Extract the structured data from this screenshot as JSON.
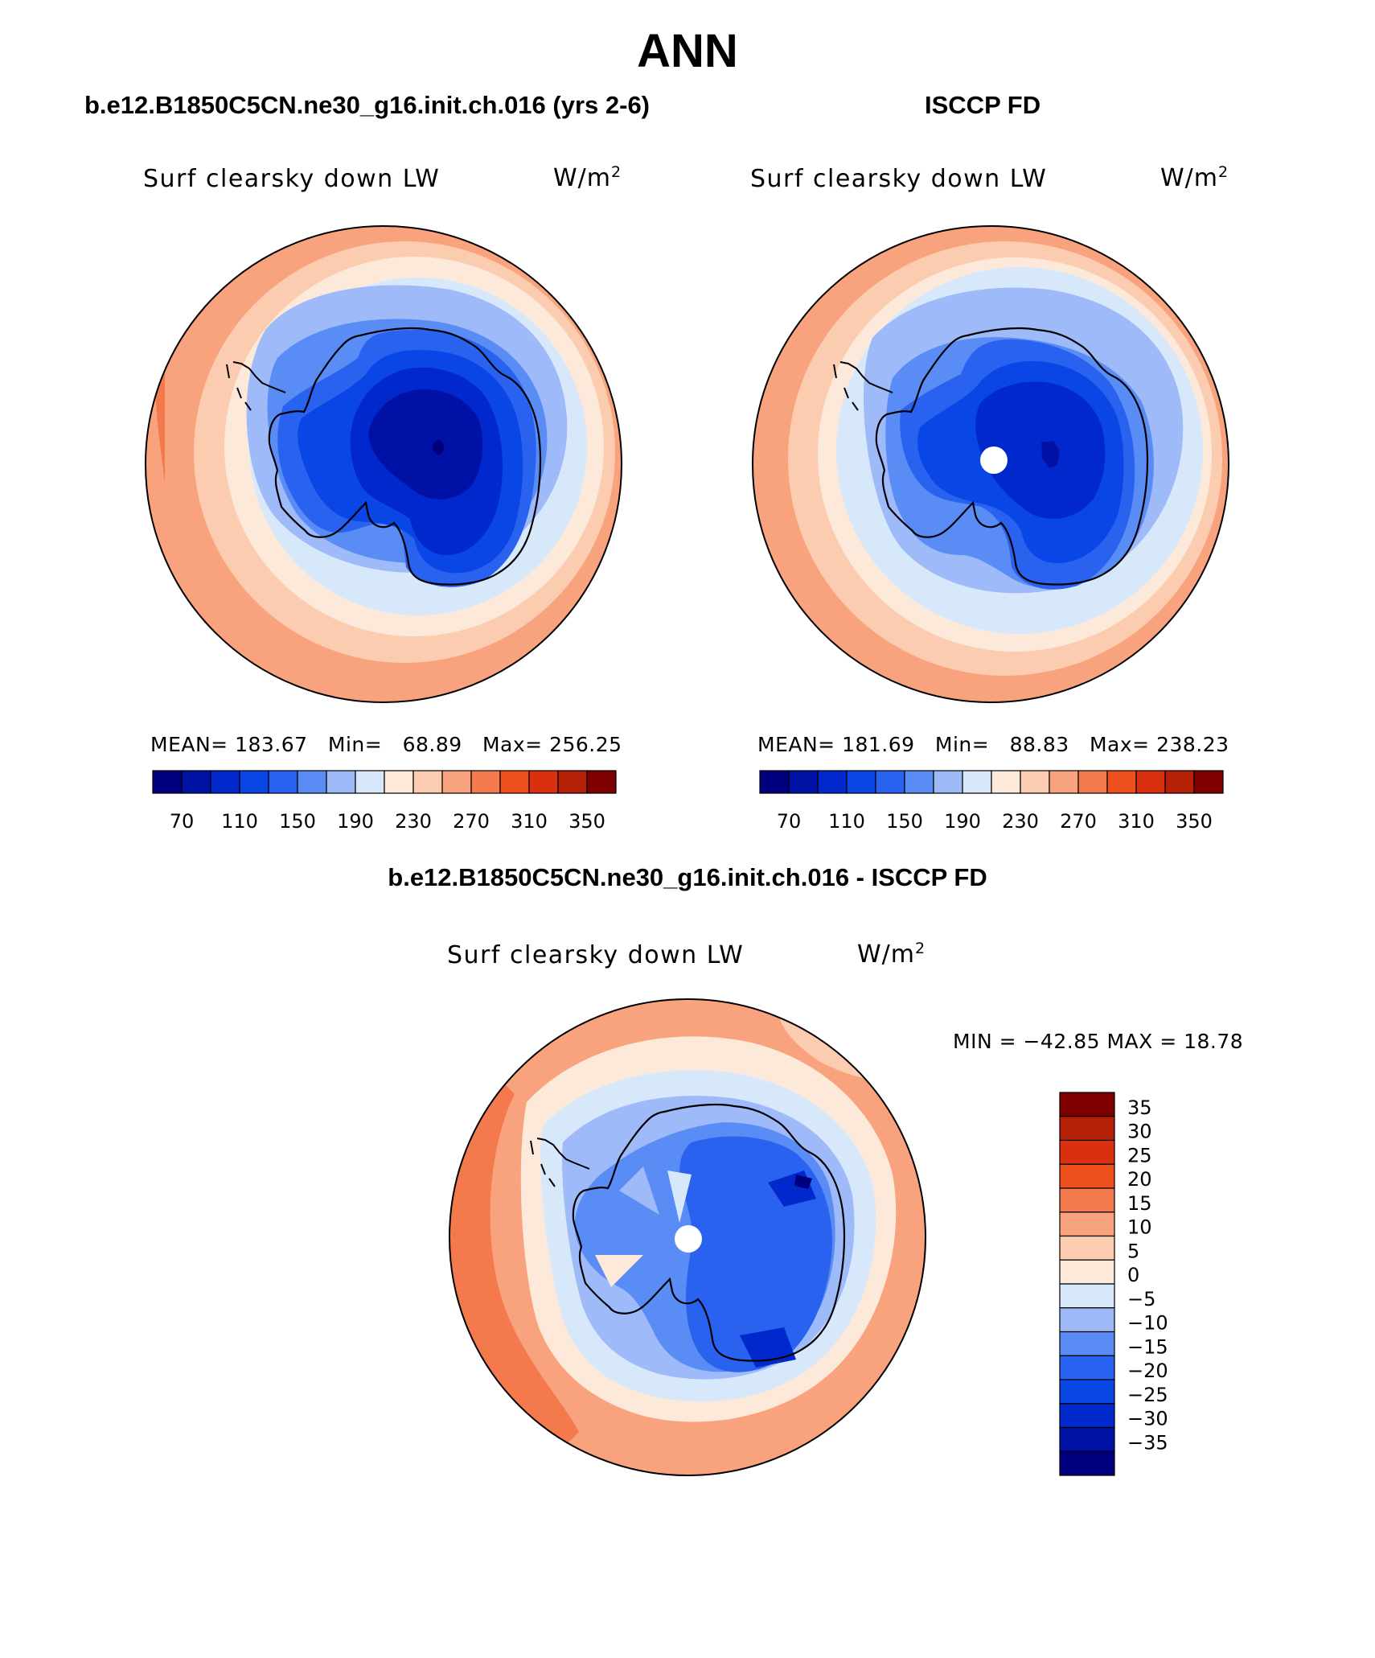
{
  "title": "ANN",
  "model_header": "b.e12.B1850C5CN.ne30_g16.init.ch.016 (yrs 2-6)",
  "obs_header": "ISCCP FD",
  "diff_header": "b.e12.B1850C5CN.ne30_g16.init.ch.016 - ISCCP FD",
  "panels": {
    "model": {
      "variable": "Surf clearsky down LW",
      "unit_base": "W/m",
      "unit_exp": "2",
      "mean_label": "MEAN=",
      "mean": "183.67",
      "min_label": "Min=",
      "min": "68.89",
      "max_label": "Max=",
      "max": "256.25"
    },
    "obs": {
      "variable": "Surf clearsky down LW",
      "unit_base": "W/m",
      "unit_exp": "2",
      "mean_label": "MEAN=",
      "mean": "181.69",
      "min_label": "Min=",
      "min": "88.83",
      "max_label": "Max=",
      "max": "238.23"
    },
    "diff": {
      "variable": "Surf clearsky down LW",
      "unit_base": "W/m",
      "unit_exp": "2",
      "minmax": "MIN = −42.85 MAX =   18.78"
    }
  },
  "colorbars": {
    "absolute": {
      "colors": [
        "#00007f",
        "#0012a6",
        "#0028cc",
        "#0a46e6",
        "#2a62f0",
        "#5a8cf5",
        "#9ebaf8",
        "#d8e8fb",
        "#fde9da",
        "#fcccb0",
        "#f9a37e",
        "#f47a4e",
        "#f0501e",
        "#d93010",
        "#b52007",
        "#7f0000"
      ],
      "labels": [
        "70",
        "110",
        "150",
        "190",
        "230",
        "270",
        "310",
        "350"
      ]
    },
    "difference": {
      "colors": [
        "#7f0000",
        "#b52007",
        "#d93010",
        "#f0501e",
        "#f47a4e",
        "#f9a37e",
        "#fcccb0",
        "#fde9da",
        "#d8e8fb",
        "#9ebaf8",
        "#5a8cf5",
        "#2a62f0",
        "#0a46e6",
        "#0028cc",
        "#0012a6",
        "#00007f"
      ],
      "labels": [
        "35",
        "30",
        "25",
        "20",
        "15",
        "10",
        "5",
        "0",
        "−5",
        "−10",
        "−15",
        "−20",
        "−25",
        "−30",
        "−35"
      ]
    }
  }
}
